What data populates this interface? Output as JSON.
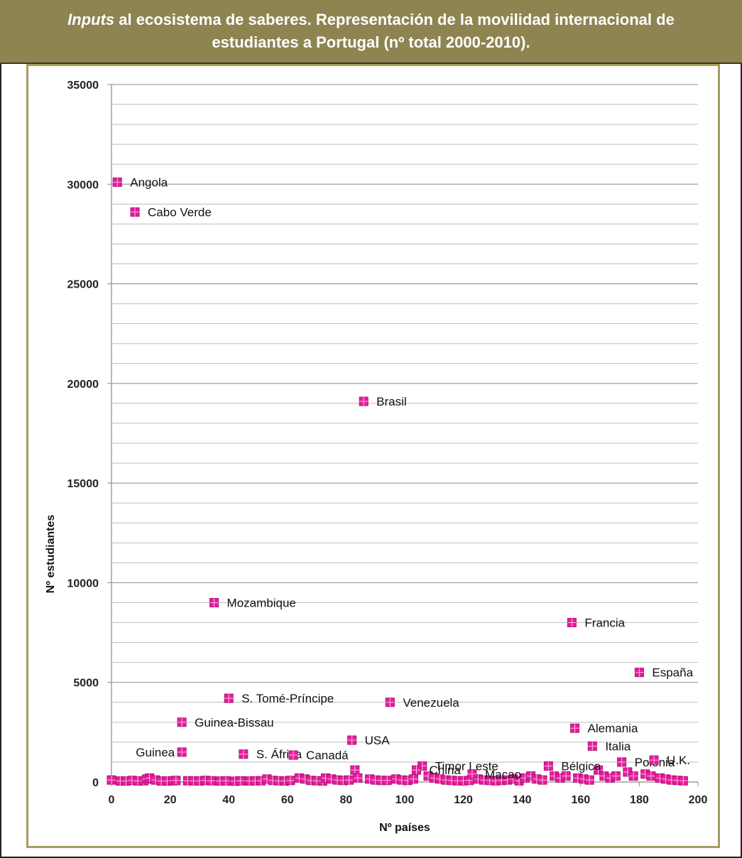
{
  "header": {
    "title_italic": "Inputs",
    "title_line1_rest": " al ecosistema de saberes. Representación de la movilidad internacional de",
    "title_line2": "estudiantes a Portugal (nº total 2000-2010)."
  },
  "colors": {
    "marker": "#e61e9b",
    "header_bg": "#8e8452",
    "border": "#a39d5f",
    "grid": "#bdbdbd"
  },
  "chart_data": {
    "type": "scatter",
    "xlabel": "Nº países",
    "ylabel": "Nº estudiantes",
    "xlim": [
      0,
      200
    ],
    "ylim": [
      0,
      35000
    ],
    "x_ticks": [
      0,
      20,
      40,
      60,
      80,
      100,
      120,
      140,
      160,
      180,
      200
    ],
    "y_ticks": [
      0,
      5000,
      10000,
      15000,
      20000,
      25000,
      30000,
      35000
    ],
    "grid": true,
    "labeled_points": [
      {
        "x": 2,
        "y": 30100,
        "label": "Angola"
      },
      {
        "x": 8,
        "y": 28600,
        "label": "Cabo Verde"
      },
      {
        "x": 86,
        "y": 19100,
        "label": "Brasil"
      },
      {
        "x": 35,
        "y": 9000,
        "label": "Mozambique"
      },
      {
        "x": 157,
        "y": 8000,
        "label": "Francia"
      },
      {
        "x": 180,
        "y": 5500,
        "label": "España"
      },
      {
        "x": 40,
        "y": 4200,
        "label": "S. Tomé-Príncipe"
      },
      {
        "x": 95,
        "y": 4000,
        "label": "Venezuela"
      },
      {
        "x": 24,
        "y": 3000,
        "label": "Guinea-Bissau"
      },
      {
        "x": 158,
        "y": 2700,
        "label": "Alemania"
      },
      {
        "x": 82,
        "y": 2100,
        "label": "USA"
      },
      {
        "x": 164,
        "y": 1800,
        "label": "Italia"
      },
      {
        "x": 24,
        "y": 1500,
        "label": "Guinea"
      },
      {
        "x": 45,
        "y": 1400,
        "label": "S. África"
      },
      {
        "x": 62,
        "y": 1350,
        "label": "Canadá"
      },
      {
        "x": 106,
        "y": 800,
        "label": "Timor Leste"
      },
      {
        "x": 104,
        "y": 600,
        "label": "China"
      },
      {
        "x": 123,
        "y": 400,
        "label": "Macao"
      },
      {
        "x": 149,
        "y": 800,
        "label": "Bélgica"
      },
      {
        "x": 174,
        "y": 1000,
        "label": "Polonia"
      },
      {
        "x": 185,
        "y": 1100,
        "label": "U.K."
      }
    ],
    "other_points_x": [
      0,
      3,
      5,
      7,
      9,
      11,
      12,
      13,
      15,
      17,
      19,
      21,
      22,
      26,
      28,
      30,
      32,
      34,
      37,
      39,
      42,
      44,
      47,
      49,
      51,
      53,
      55,
      57,
      59,
      61,
      64,
      66,
      68,
      70,
      72,
      73,
      75,
      77,
      79,
      81,
      83,
      84,
      88,
      90,
      92,
      94,
      97,
      99,
      101,
      103,
      108,
      110,
      112,
      114,
      116,
      118,
      120,
      122,
      125,
      127,
      129,
      131,
      133,
      135,
      137,
      139,
      141,
      143,
      145,
      147,
      151,
      153,
      155,
      159,
      161,
      163,
      166,
      168,
      170,
      172,
      176,
      178,
      182,
      184,
      187,
      189,
      191,
      193,
      195
    ],
    "other_points_y": [
      100,
      50,
      50,
      80,
      50,
      60,
      150,
      200,
      100,
      50,
      50,
      60,
      80,
      60,
      60,
      50,
      80,
      60,
      50,
      60,
      40,
      60,
      50,
      60,
      60,
      150,
      80,
      60,
      50,
      80,
      200,
      150,
      80,
      60,
      50,
      200,
      150,
      100,
      80,
      100,
      600,
      200,
      150,
      100,
      80,
      80,
      150,
      100,
      80,
      150,
      300,
      200,
      150,
      100,
      80,
      60,
      60,
      80,
      150,
      100,
      80,
      60,
      80,
      100,
      150,
      60,
      200,
      300,
      150,
      100,
      300,
      200,
      300,
      200,
      150,
      100,
      600,
      300,
      200,
      300,
      500,
      300,
      400,
      300,
      200,
      150,
      100,
      80,
      60
    ]
  }
}
